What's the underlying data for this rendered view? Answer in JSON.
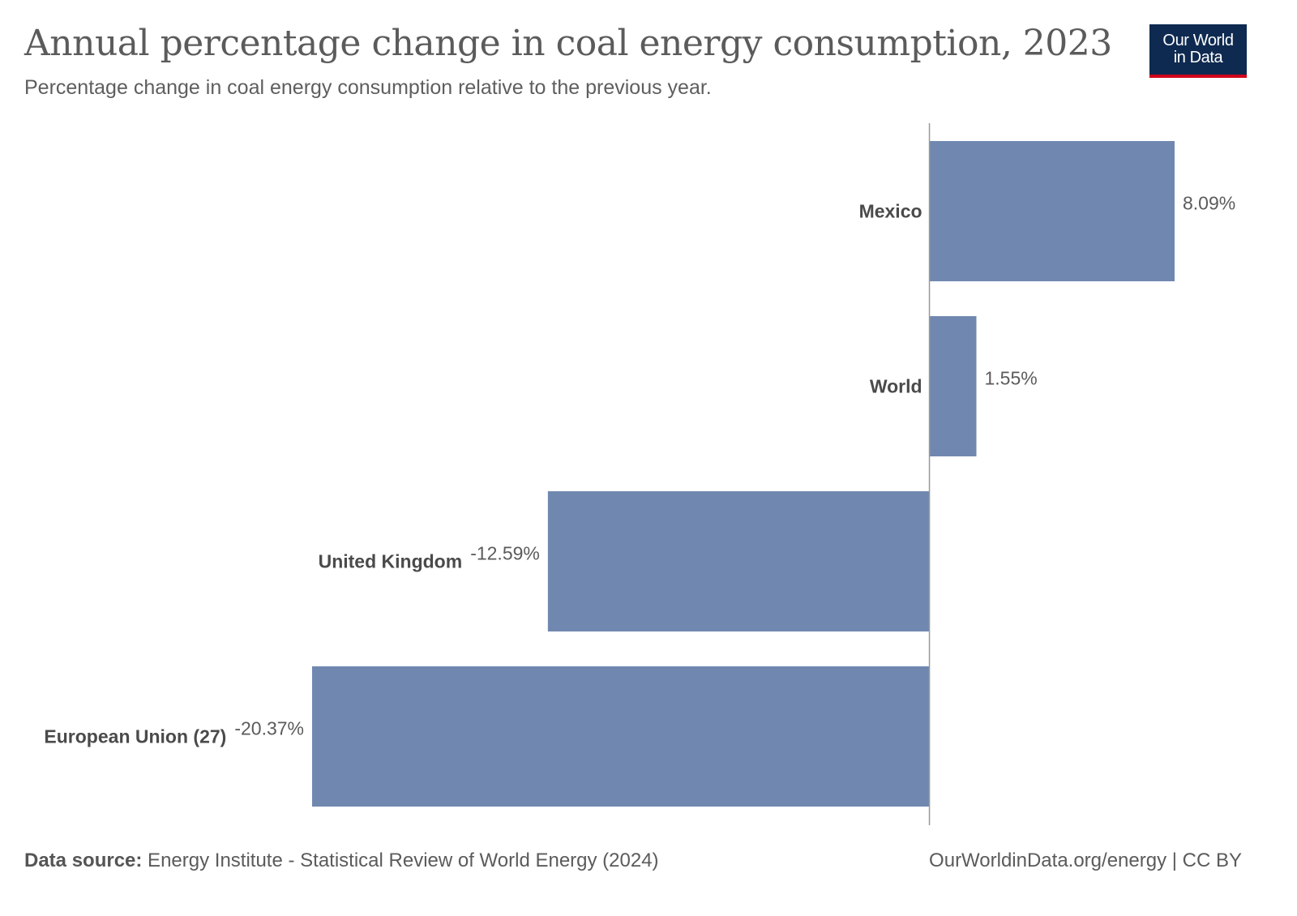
{
  "header": {
    "title": "Annual percentage change in coal energy consumption, 2023",
    "subtitle": "Percentage change in coal energy consumption relative to the previous year."
  },
  "logo": {
    "line1": "Our World",
    "line2": "in Data"
  },
  "footer": {
    "source_label": "Data source:",
    "source_text": " Energy Institute - Statistical Review of World Energy (2024)",
    "right_text": "OurWorldinData.org/energy | CC BY"
  },
  "colors": {
    "bar": "#7088b0",
    "axis": "#999999",
    "label": "#4a4a4a",
    "value": "#5b5b5b"
  },
  "chart_data": {
    "type": "bar",
    "orientation": "horizontal",
    "categories": [
      "Mexico",
      "World",
      "United Kingdom",
      "European Union (27)"
    ],
    "values": [
      8.09,
      1.55,
      -12.59,
      -20.37
    ],
    "value_labels": [
      "8.09%",
      "1.55%",
      "-12.59%",
      "-20.37%"
    ],
    "unit": "%",
    "xlim": [
      -20.37,
      8.09
    ],
    "grid": false,
    "legend": "none"
  }
}
